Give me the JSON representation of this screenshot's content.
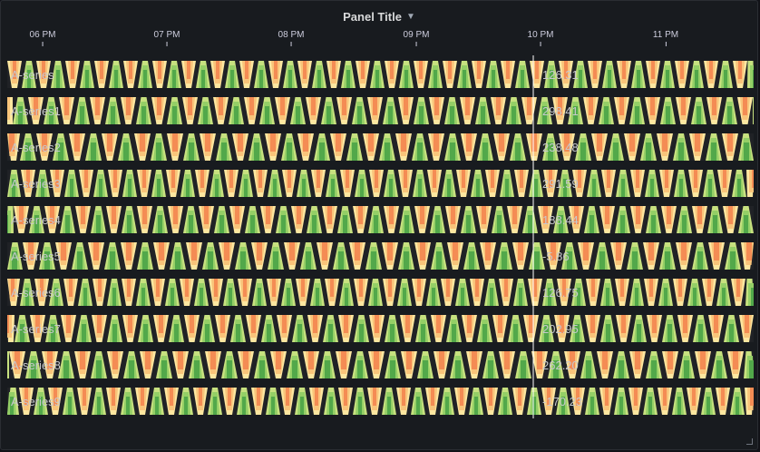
{
  "panel": {
    "title": "Panel Title",
    "menu_icon": "chevron-down-icon"
  },
  "x_axis": {
    "ticks": [
      "06 PM",
      "07 PM",
      "08 PM",
      "09 PM",
      "10 PM",
      "11 PM"
    ]
  },
  "cursor_time_label": "10 PM",
  "colors": {
    "background": "#181b1f",
    "gap": "#202226",
    "scale": [
      "#fde7a0",
      "#f9c47a",
      "#f48c54",
      "#e04a37",
      "#c7e17f",
      "#94cf66",
      "#52a84a",
      "#1e7a37"
    ],
    "cursor": "#ffffff",
    "label": "#c8c9cc"
  },
  "rows": [
    {
      "name": "A-series",
      "value": "126.31"
    },
    {
      "name": "A-series1",
      "value": "298.41"
    },
    {
      "name": "A-series2",
      "value": "238.48"
    },
    {
      "name": "A-series3",
      "value": "291.59"
    },
    {
      "name": "A-series4",
      "value": "188.44"
    },
    {
      "name": "A-series5",
      "value": "-5.86"
    },
    {
      "name": "A-series6",
      "value": "126.75"
    },
    {
      "name": "A-series7",
      "value": "202.95"
    },
    {
      "name": "A-series8",
      "value": "262.20"
    },
    {
      "name": "A-series9",
      "value": "-170.23"
    }
  ]
}
